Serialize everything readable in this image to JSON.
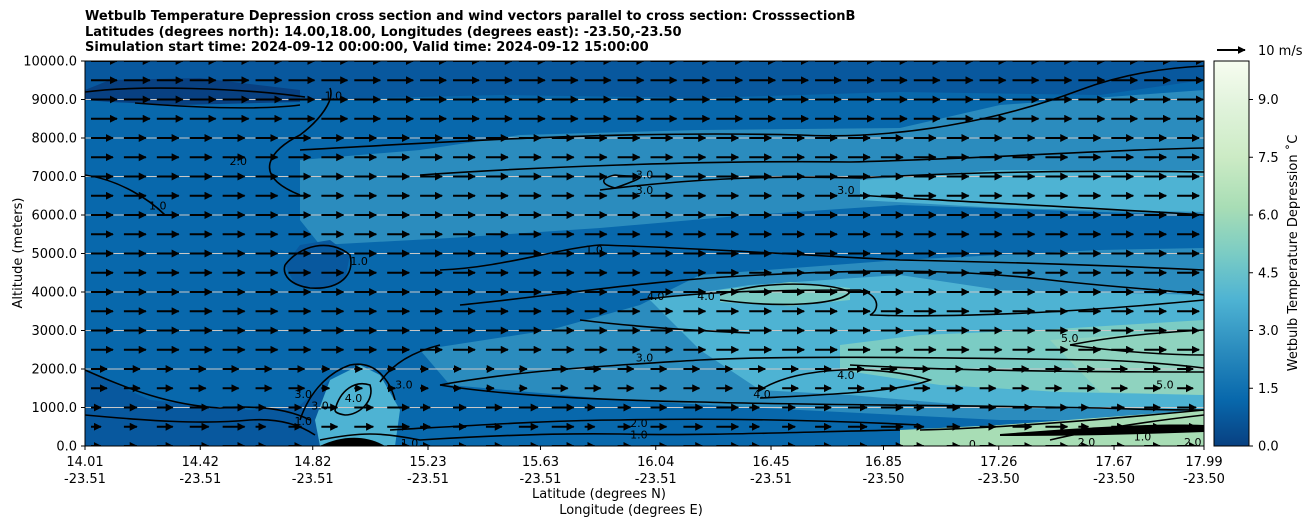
{
  "chart_data": {
    "type": "contour",
    "title_lines": [
      "Wetbulb Temperature Depression cross section and wind vectors parallel to cross section: CrosssectionB",
      "Latitudes (degrees north): 14.00,18.00, Longitudes (degrees east): -23.50,-23.50",
      "Simulation start time: 2024-09-12 00:00:00, Valid time: 2024-09-12 15:00:00"
    ],
    "xlabel_lines": [
      "Latitude (degrees N)",
      "Longitude (degrees E)"
    ],
    "ylabel": "Altitude (meters)",
    "x_ticks": [
      {
        "lat": "14.01",
        "lon": "-23.51"
      },
      {
        "lat": "14.42",
        "lon": "-23.51"
      },
      {
        "lat": "14.82",
        "lon": "-23.51"
      },
      {
        "lat": "15.23",
        "lon": "-23.51"
      },
      {
        "lat": "15.63",
        "lon": "-23.51"
      },
      {
        "lat": "16.04",
        "lon": "-23.51"
      },
      {
        "lat": "16.45",
        "lon": "-23.51"
      },
      {
        "lat": "16.85",
        "lon": "-23.50"
      },
      {
        "lat": "17.26",
        "lon": "-23.50"
      },
      {
        "lat": "17.67",
        "lon": "-23.50"
      },
      {
        "lat": "17.99",
        "lon": "-23.50"
      }
    ],
    "y_ticks": [
      "0.0",
      "1000.0",
      "2000.0",
      "3000.0",
      "4000.0",
      "5000.0",
      "6000.0",
      "7000.0",
      "8000.0",
      "9000.0",
      "10000.0"
    ],
    "ylim": [
      0,
      10000
    ],
    "grid": "horizontal",
    "colorbar": {
      "label": "Wetbulb Temperature Depression ˚C",
      "ticks": [
        "0.0",
        "1.5",
        "3.0",
        "4.5",
        "6.0",
        "7.5",
        "9.0"
      ],
      "range": [
        0,
        10
      ],
      "colors": [
        "#084081",
        "#0868ac",
        "#2b8cbe",
        "#4eb3d3",
        "#7bccc4",
        "#a8ddb5",
        "#ccebc5",
        "#e0f3db",
        "#f7fcf0"
      ]
    },
    "quiver_key": "10 m/s",
    "contour_labels": [
      {
        "text": "1.0",
        "x": 0.222,
        "z": 9100
      },
      {
        "text": "2.0",
        "x": 0.137,
        "z": 7400
      },
      {
        "text": "1.0",
        "x": 0.065,
        "z": 6250
      },
      {
        "text": "3.0",
        "x": 0.5,
        "z": 7050
      },
      {
        "text": "3.0",
        "x": 0.5,
        "z": 6650
      },
      {
        "text": "3.0",
        "x": 0.68,
        "z": 6650
      },
      {
        "text": "1.0",
        "x": 0.455,
        "z": 5100
      },
      {
        "text": "1.0",
        "x": 0.245,
        "z": 4800
      },
      {
        "text": "4.0",
        "x": 0.51,
        "z": 3900
      },
      {
        "text": "4.0",
        "x": 0.555,
        "z": 3900
      },
      {
        "text": "5.0",
        "x": 0.88,
        "z": 2800
      },
      {
        "text": "3.0",
        "x": 0.5,
        "z": 2300
      },
      {
        "text": "4.0",
        "x": 0.68,
        "z": 1850
      },
      {
        "text": "4.0",
        "x": 0.605,
        "z": 1350
      },
      {
        "text": "5.0",
        "x": 0.965,
        "z": 1600
      },
      {
        "text": "3.0",
        "x": 0.195,
        "z": 1350
      },
      {
        "text": "3.0",
        "x": 0.21,
        "z": 1050
      },
      {
        "text": "4.0",
        "x": 0.24,
        "z": 1250
      },
      {
        "text": "3.0",
        "x": 0.285,
        "z": 1600
      },
      {
        "text": "1.0",
        "x": 0.195,
        "z": 650
      },
      {
        "text": "2.0",
        "x": 0.495,
        "z": 600
      },
      {
        "text": "1.0",
        "x": 0.495,
        "z": 300
      },
      {
        "text": "1.0",
        "x": 0.29,
        "z": 80
      },
      {
        "text": "2.0",
        "x": 0.895,
        "z": 100
      },
      {
        "text": "1.0",
        "x": 0.945,
        "z": 250
      },
      {
        "text": "2.0",
        "x": 0.99,
        "z": 100
      },
      {
        "text": "0",
        "x": 0.793,
        "z": 50
      }
    ]
  }
}
